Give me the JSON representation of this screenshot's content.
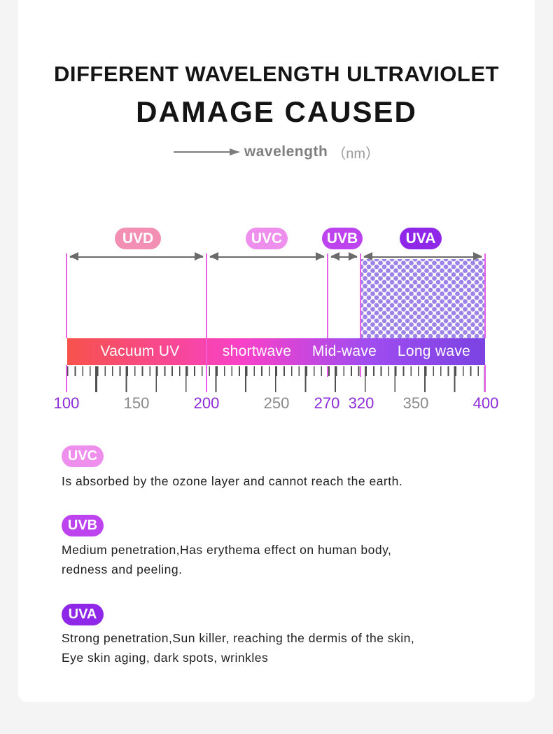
{
  "title": {
    "line1": "DIFFERENT WAVELENGTH ULTRAVIOLET",
    "line2": "DAMAGE CAUSED"
  },
  "axis": {
    "label": "wavelength",
    "unit": "（nm）"
  },
  "icons": {
    "axis_arrow": "right-arrow",
    "band_arrows": "double-headed-arrow"
  },
  "colors": {
    "accent_magenta_line": "#e863ea",
    "bar_gradient_start": "#f7524c",
    "bar_gradient_mid": "#f841c8",
    "bar_gradient_end": "#7b43e2",
    "uvd_badge": "#f48fb4",
    "uvc_badge": "#ee8fee",
    "uvb_badge": "#bd43ef",
    "uva_badge": "#8e27e8",
    "scale_number_purple": "#8e2bd9",
    "scale_number_gray": "#8a8a8a"
  },
  "bands": {
    "uvd": {
      "label": "UVD",
      "range_label": "Vacuum UV",
      "from": 100,
      "to": 200
    },
    "uvc": {
      "label": "UVC",
      "range_label": "shortwave",
      "from": 200,
      "to": 270
    },
    "uvb": {
      "label": "UVB",
      "range_label": "Mid-wave",
      "from": 270,
      "to": 320
    },
    "uva": {
      "label": "UVA",
      "range_label": "Long wave",
      "from": 320,
      "to": 400
    }
  },
  "scale": {
    "numbers": [
      {
        "value": "100"
      },
      {
        "value": "150"
      },
      {
        "value": "200"
      },
      {
        "value": "250"
      },
      {
        "value": "270"
      },
      {
        "value": "320"
      },
      {
        "value": "350"
      },
      {
        "value": "400"
      }
    ]
  },
  "chart_data": {
    "type": "table",
    "title": "UV wavelength bands (nm)",
    "axis_ticks": [
      100,
      150,
      200,
      250,
      270,
      320,
      350,
      400
    ],
    "bands": [
      {
        "name": "UVD",
        "range": [
          100,
          200
        ],
        "zone": "Vacuum UV"
      },
      {
        "name": "UVC",
        "range": [
          200,
          270
        ],
        "zone": "shortwave"
      },
      {
        "name": "UVB",
        "range": [
          270,
          320
        ],
        "zone": "Mid-wave"
      },
      {
        "name": "UVA",
        "range": [
          320,
          400
        ],
        "zone": "Long wave"
      }
    ]
  },
  "sections": [
    {
      "badge": "UVC",
      "line1": "Is absorbed by the ozone layer and cannot reach the earth.",
      "line2": ""
    },
    {
      "badge": "UVB",
      "line1": "Medium penetration,Has erythema effect on human body,",
      "line2": "redness and peeling."
    },
    {
      "badge": "UVA",
      "line1": "Strong penetration,Sun killer, reaching the dermis of the skin,",
      "line2": "Eye skin aging, dark spots, wrinkles"
    }
  ]
}
